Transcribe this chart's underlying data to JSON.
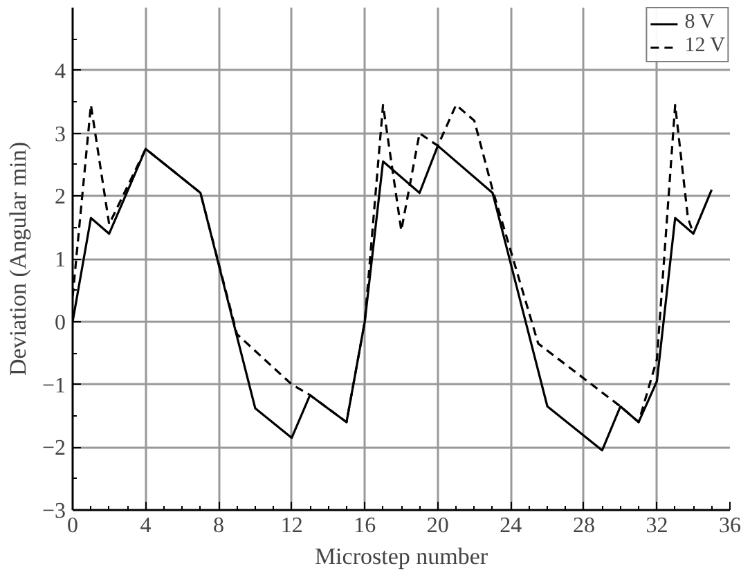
{
  "chart_data": {
    "type": "line",
    "xlabel": "Microstep number",
    "ylabel": "Deviation (Angular min)",
    "xlim": [
      0,
      36
    ],
    "xticks": [
      0,
      4,
      8,
      12,
      16,
      20,
      24,
      28,
      32,
      36
    ],
    "ylim": [
      -3,
      5
    ],
    "yticks": [
      -3,
      -2,
      -1,
      0,
      1,
      2,
      3,
      4
    ],
    "grid": true,
    "legend": "top right",
    "marker": "none",
    "series": [
      {
        "name": "8 V",
        "color": "#000000",
        "line_style": "solid",
        "x": [
          0,
          1,
          2,
          4,
          7,
          10,
          12,
          13,
          15,
          16,
          17,
          19,
          20,
          23,
          26,
          29,
          30,
          31,
          32,
          33,
          34,
          35
        ],
        "values": [
          0,
          1.65,
          1.4,
          2.75,
          2.05,
          -1.38,
          -1.85,
          -1.17,
          -1.6,
          0,
          2.55,
          2.05,
          2.8,
          2.05,
          -1.35,
          -2.05,
          -1.35,
          -1.6,
          -0.95,
          1.65,
          1.4,
          2.1
        ]
      },
      {
        "name": "12 V",
        "color": "#000000",
        "line_style": "dashed",
        "x": [
          0,
          1,
          2,
          4,
          7,
          9,
          12,
          13,
          15,
          16,
          17,
          18,
          19,
          20,
          21,
          22,
          23,
          25.5,
          30,
          31,
          32,
          33,
          33.7,
          34
        ],
        "values": [
          0.4,
          3.45,
          1.55,
          2.75,
          2.05,
          -0.2,
          -1.0,
          -1.17,
          -1.6,
          0,
          3.45,
          1.45,
          3.0,
          2.8,
          3.45,
          3.2,
          2.1,
          -0.35,
          -1.35,
          -1.6,
          -0.6,
          3.45,
          1.65,
          1.4
        ]
      }
    ]
  }
}
